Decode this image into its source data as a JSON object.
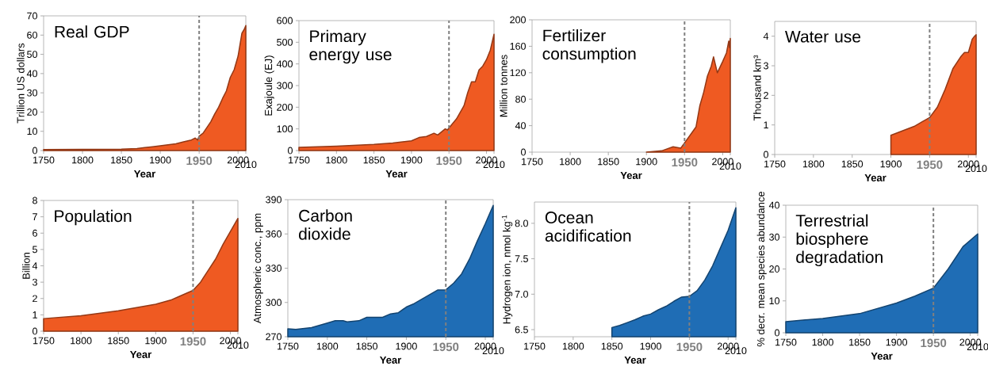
{
  "chart_data": [
    {
      "type": "area",
      "title": "Real GDP",
      "xlabel": "Year",
      "ylabel": "Trillion US dollars",
      "color": "#ef5a22",
      "xlim": [
        1750,
        2010
      ],
      "xticks": [
        1750,
        1800,
        1850,
        1900,
        1950,
        2000,
        2010
      ],
      "ylim": [
        0,
        70
      ],
      "yticks": [
        0,
        10,
        20,
        30,
        40,
        50,
        60,
        70
      ],
      "ref_lines": [
        {
          "axis": "x",
          "value": 1950,
          "color": "#808080",
          "line_style": "dashed"
        }
      ],
      "x": [
        1750,
        1800,
        1850,
        1870,
        1880,
        1890,
        1900,
        1910,
        1920,
        1930,
        1940,
        1945,
        1948,
        1950,
        1955,
        1960,
        1965,
        1970,
        1975,
        1980,
        1985,
        1990,
        1995,
        2000,
        2005,
        2008,
        2010
      ],
      "values": [
        0.5,
        0.6,
        0.7,
        1.0,
        1.5,
        2,
        2.5,
        3,
        3.5,
        4.5,
        5.5,
        6.5,
        5.5,
        7.5,
        9,
        12,
        15,
        19,
        22.5,
        27,
        31,
        38,
        42,
        49,
        61,
        63,
        65
      ]
    },
    {
      "type": "area",
      "title": "Primary energy use",
      "xlabel": "Year",
      "ylabel": "Exajoule (EJ)",
      "color": "#ef5a22",
      "xlim": [
        1750,
        2010
      ],
      "xticks": [
        1750,
        1800,
        1850,
        1900,
        1950,
        2000,
        2010
      ],
      "ylim": [
        0,
        600
      ],
      "yticks": [
        0,
        100,
        200,
        300,
        400,
        500,
        600
      ],
      "ref_lines": [
        {
          "axis": "x",
          "value": 1950,
          "color": "#808080",
          "line_style": "dashed"
        }
      ],
      "x": [
        1750,
        1800,
        1850,
        1875,
        1900,
        1910,
        1920,
        1930,
        1935,
        1945,
        1948,
        1950,
        1960,
        1970,
        1975,
        1980,
        1985,
        1990,
        1995,
        2000,
        2005,
        2010
      ],
      "values": [
        15,
        20,
        28,
        35,
        45,
        60,
        65,
        80,
        72,
        100,
        95,
        104,
        146,
        207,
        268,
        317,
        317,
        372,
        390,
        420,
        463,
        537
      ]
    },
    {
      "type": "area",
      "title": "Fertilizer consumption",
      "xlabel": "Year",
      "ylabel": "Million tonnes",
      "color": "#ef5a22",
      "xlim": [
        1750,
        2010
      ],
      "xticks": [
        1750,
        1800,
        1850,
        1900,
        1950,
        2000,
        2010
      ],
      "ylim": [
        0,
        200
      ],
      "yticks": [
        0,
        40,
        80,
        120,
        160,
        200
      ],
      "ref_lines": [
        {
          "axis": "x",
          "value": 1950,
          "color": "#808080",
          "line_style": "dashed"
        }
      ],
      "x": [
        1900,
        1920,
        1935,
        1945,
        1950,
        1960,
        1965,
        1970,
        1975,
        1980,
        1985,
        1988,
        1993,
        2000,
        2005,
        2008,
        2009,
        2010
      ],
      "values": [
        0,
        2,
        8,
        6,
        14,
        30,
        38,
        70,
        90,
        115,
        130,
        144,
        120,
        137,
        150,
        168,
        158,
        172
      ]
    },
    {
      "type": "area",
      "title": "Water use",
      "xlabel": "Year",
      "ylabel": "Thousand km³",
      "color": "#ef5a22",
      "xlim": [
        1750,
        2010
      ],
      "xticks": [
        1750,
        1800,
        1850,
        1900,
        1950,
        2000,
        2010
      ],
      "ylim": [
        0,
        4.5
      ],
      "yticks": [
        0,
        1,
        2,
        3,
        4
      ],
      "ref_lines": [
        {
          "axis": "x",
          "value": 1950,
          "color": "#808080",
          "line_style": "dashed"
        }
      ],
      "x": [
        1900,
        1910,
        1920,
        1930,
        1940,
        1950,
        1960,
        1970,
        1980,
        1985,
        1990,
        1995,
        2000,
        2005,
        2008,
        2010
      ],
      "values": [
        0.65,
        0.75,
        0.85,
        0.95,
        1.1,
        1.25,
        1.6,
        2.2,
        2.9,
        3.1,
        3.3,
        3.45,
        3.45,
        3.9,
        4.0,
        4.05
      ]
    },
    {
      "type": "area",
      "title": "Population",
      "xlabel": "Year",
      "ylabel": "Billion",
      "color": "#ef5a22",
      "xlim": [
        1750,
        2010
      ],
      "xticks": [
        1750,
        1800,
        1850,
        1900,
        1950,
        2000,
        2010
      ],
      "ylim": [
        0,
        8
      ],
      "yticks": [
        0,
        1,
        2,
        3,
        4,
        5,
        6,
        7,
        8
      ],
      "ref_lines": [
        {
          "axis": "x",
          "value": 1950,
          "color": "#808080",
          "line_style": "dashed"
        }
      ],
      "x": [
        1750,
        1800,
        1850,
        1900,
        1920,
        1930,
        1950,
        1960,
        1970,
        1980,
        1990,
        2000,
        2010
      ],
      "values": [
        0.77,
        0.95,
        1.25,
        1.65,
        1.9,
        2.1,
        2.5,
        3.0,
        3.7,
        4.4,
        5.3,
        6.1,
        6.9
      ]
    },
    {
      "type": "area",
      "title": "Carbon dioxide",
      "xlabel": "Year",
      "ylabel": "Atmospheric conc., ppm",
      "color": "#1f6db5",
      "xlim": [
        1750,
        2010
      ],
      "xticks": [
        1750,
        1800,
        1850,
        1900,
        1950,
        2000,
        2010
      ],
      "ylim": [
        270,
        390
      ],
      "yticks": [
        270,
        300,
        330,
        360,
        390
      ],
      "ref_lines": [
        {
          "axis": "x",
          "value": 1950,
          "color": "#808080",
          "line_style": "dashed"
        }
      ],
      "x": [
        1750,
        1760,
        1780,
        1800,
        1810,
        1820,
        1825,
        1840,
        1850,
        1870,
        1880,
        1890,
        1900,
        1910,
        1920,
        1930,
        1940,
        1950,
        1960,
        1970,
        1980,
        1990,
        2000,
        2010
      ],
      "values": [
        277,
        276.5,
        278,
        282,
        284,
        284,
        283,
        284,
        287,
        287,
        290,
        291,
        296,
        299,
        303,
        307,
        311,
        311,
        317,
        325,
        338,
        354,
        369,
        385
      ]
    },
    {
      "type": "area",
      "title": "Ocean acidification",
      "xlabel": "Year",
      "ylabel": "Hydrogen ion, nmol kg$^{-1}$",
      "color": "#1f6db5",
      "xlim": [
        1750,
        2010
      ],
      "xticks": [
        1750,
        1800,
        1850,
        1900,
        1950,
        2000,
        2010
      ],
      "ylim": [
        6.4,
        8.3
      ],
      "yticks": [
        6.5,
        {
          "value": 7,
          "label": "7.0"
        },
        7.5,
        {
          "value": 8,
          "label": "8.0"
        }
      ],
      "ref_lines": [
        {
          "axis": "x",
          "value": 1950,
          "color": "#808080",
          "line_style": "dashed"
        }
      ],
      "x": [
        1850,
        1860,
        1870,
        1880,
        1890,
        1900,
        1910,
        1920,
        1930,
        1940,
        1950,
        1960,
        1970,
        1980,
        1990,
        2000,
        2010
      ],
      "values": [
        6.53,
        6.56,
        6.6,
        6.64,
        6.69,
        6.72,
        6.78,
        6.83,
        6.9,
        6.96,
        6.97,
        7.05,
        7.2,
        7.4,
        7.65,
        7.9,
        8.22
      ]
    },
    {
      "type": "area",
      "title": "Terrestrial biosphere degradation",
      "xlabel": "Year",
      "ylabel": "% decr. mean species abundance",
      "color": "#1f6db5",
      "xlim": [
        1750,
        2010
      ],
      "xticks": [
        1750,
        1800,
        1850,
        1900,
        1950,
        2000,
        2010
      ],
      "ylim": [
        0,
        40
      ],
      "yticks": [
        0,
        10,
        20,
        30,
        40
      ],
      "ref_lines": [
        {
          "axis": "x",
          "value": 1950,
          "color": "#808080",
          "line_style": "dashed"
        }
      ],
      "x": [
        1750,
        1800,
        1850,
        1900,
        1925,
        1950,
        1970,
        1990,
        2010
      ],
      "values": [
        3.5,
        4.5,
        6,
        9.3,
        11.5,
        14,
        20,
        27,
        31
      ]
    }
  ]
}
